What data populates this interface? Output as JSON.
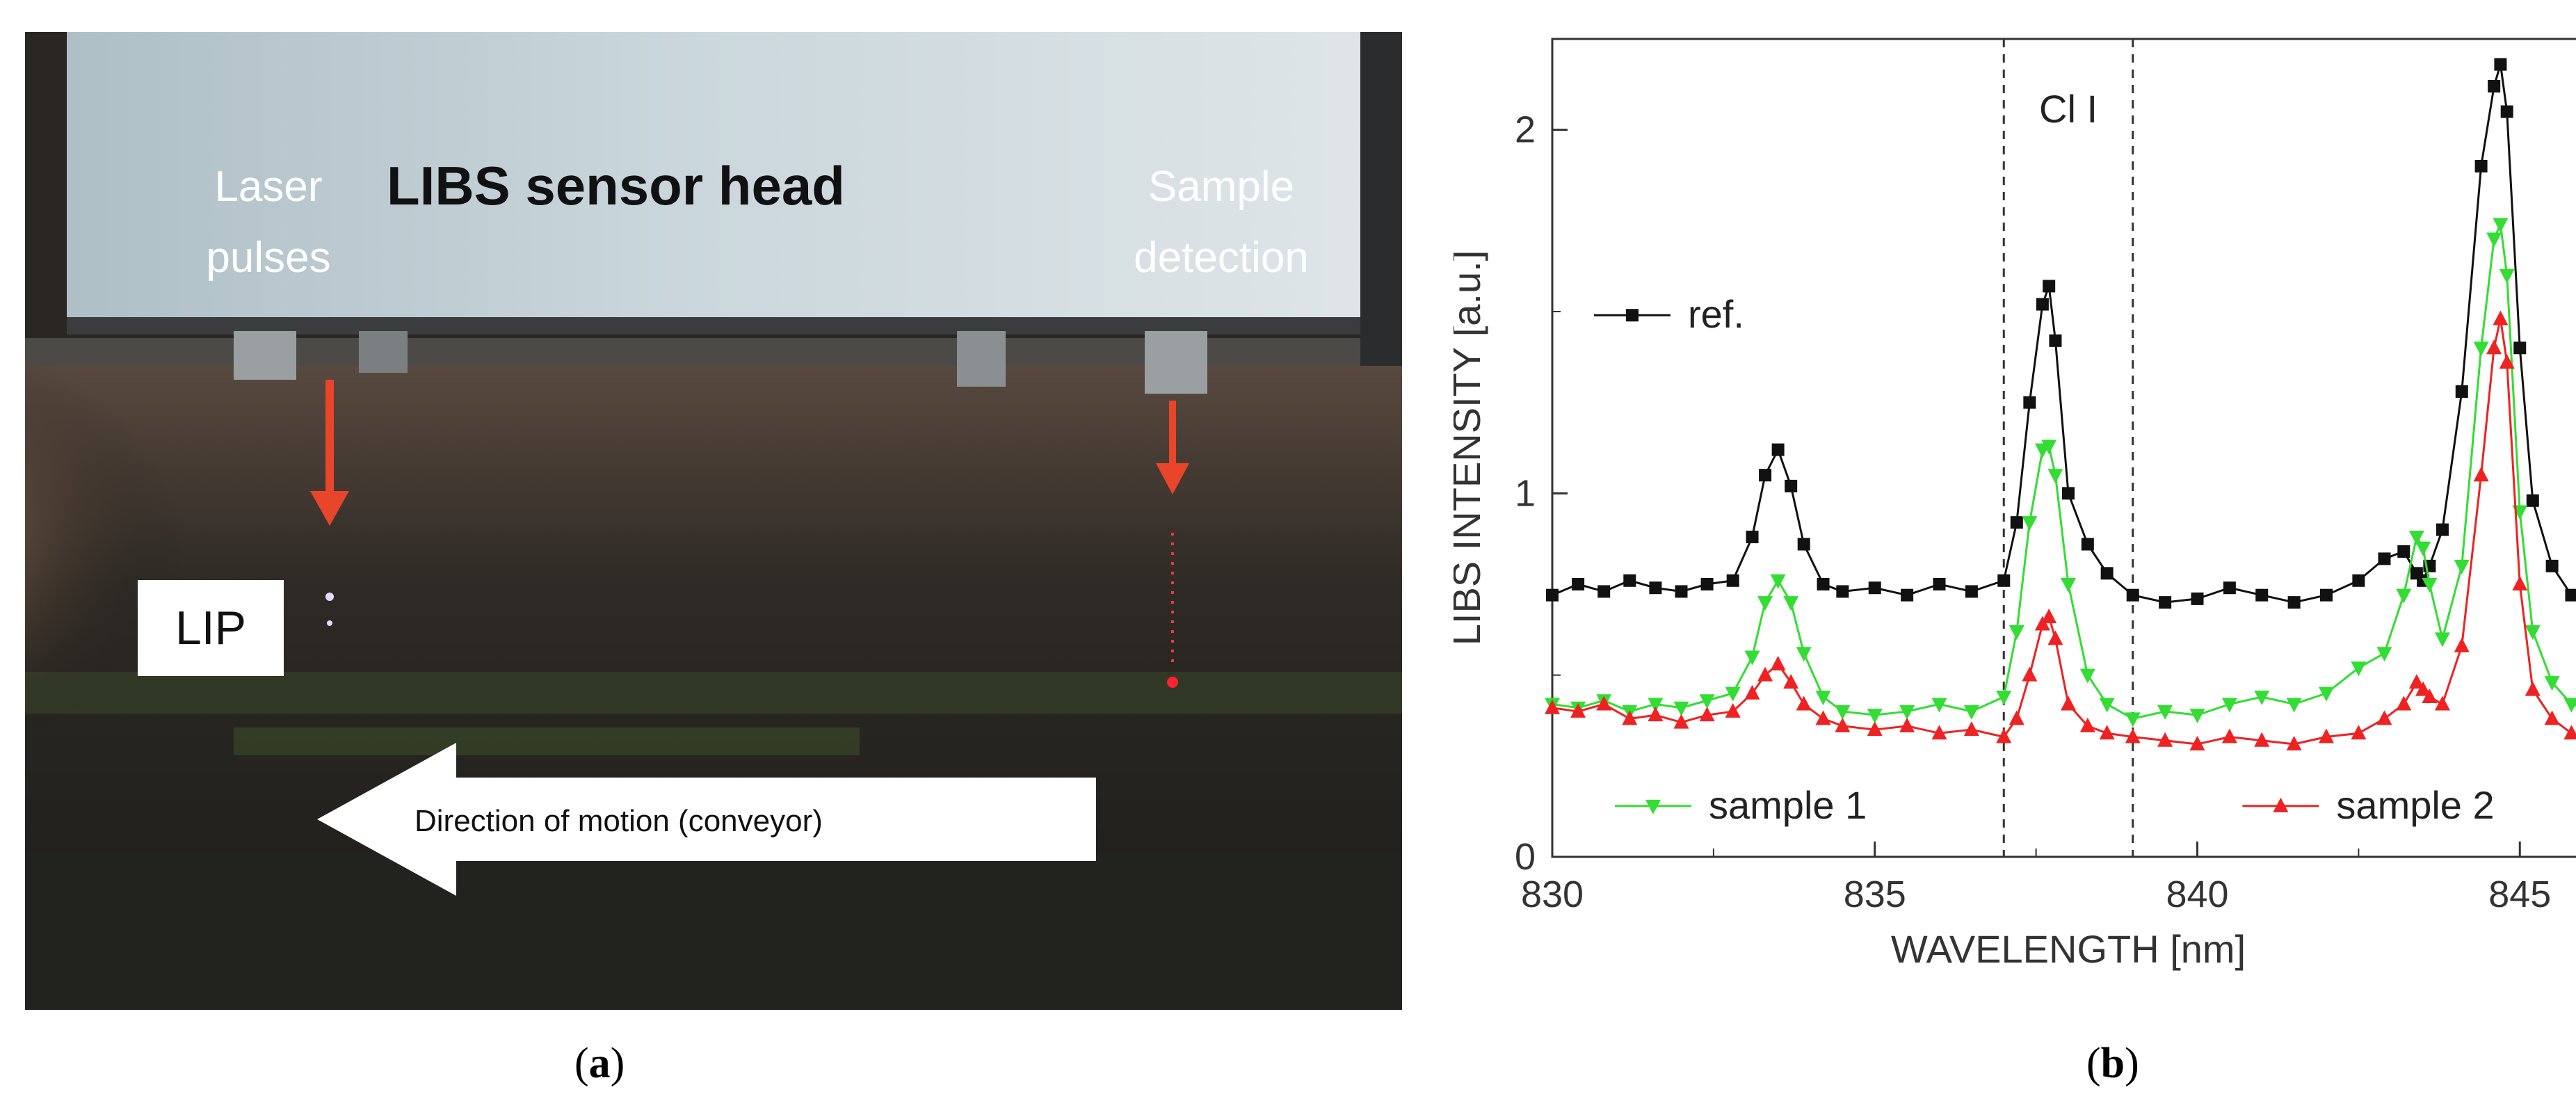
{
  "panel_a": {
    "sensor_head_label": "LIBS sensor head",
    "laser_label_line1": "Laser",
    "laser_label_line2": "pulses",
    "detection_label_line1": "Sample",
    "detection_label_line2": "detection",
    "lip_label": "LIP",
    "motion_label": "Direction of motion (conveyor)",
    "arrow_color": "#e8452a"
  },
  "captions": {
    "a_open": "(",
    "a_letter": "a",
    "a_close": ")",
    "b_open": "(",
    "b_letter": "b",
    "b_close": ")"
  },
  "chart_data": {
    "type": "line",
    "title": "",
    "xlabel": "WAVELENGTH  [nm]",
    "ylabel": "LIBS INTENSITY  [a.u.]",
    "xlim": [
      830,
      846
    ],
    "ylim": [
      0,
      2.25
    ],
    "xticks": [
      830,
      835,
      840,
      845
    ],
    "yticks": [
      0,
      1,
      2
    ],
    "grid": false,
    "annotation": "Cl I",
    "vlines": [
      837,
      839
    ],
    "legend": [
      {
        "series": "ref.",
        "placement": "left"
      },
      {
        "series": "sample 1",
        "placement": "bottom-left"
      },
      {
        "series": "sample 2",
        "placement": "bottom-right"
      }
    ],
    "x": [
      830.0,
      830.4,
      830.8,
      831.2,
      831.6,
      832.0,
      832.4,
      832.8,
      833.1,
      833.3,
      833.5,
      833.7,
      833.9,
      834.2,
      834.5,
      835.0,
      835.5,
      836.0,
      836.5,
      837.0,
      837.2,
      837.4,
      837.6,
      837.7,
      837.8,
      838.0,
      838.3,
      838.6,
      839.0,
      839.5,
      840.0,
      840.5,
      841.0,
      841.5,
      842.0,
      842.5,
      842.9,
      843.2,
      843.4,
      843.5,
      843.6,
      843.8,
      844.1,
      844.4,
      844.6,
      844.7,
      844.8,
      845.0,
      845.2,
      845.5,
      845.8,
      846.0
    ],
    "series": [
      {
        "name": "ref.",
        "color": "#111111",
        "marker": "square",
        "values": [
          0.72,
          0.75,
          0.73,
          0.76,
          0.74,
          0.73,
          0.75,
          0.76,
          0.88,
          1.05,
          1.12,
          1.02,
          0.86,
          0.75,
          0.73,
          0.74,
          0.72,
          0.75,
          0.73,
          0.76,
          0.92,
          1.25,
          1.52,
          1.57,
          1.42,
          1.0,
          0.86,
          0.78,
          0.72,
          0.7,
          0.71,
          0.74,
          0.72,
          0.7,
          0.72,
          0.76,
          0.82,
          0.84,
          0.78,
          0.76,
          0.8,
          0.9,
          1.28,
          1.9,
          2.12,
          2.18,
          2.05,
          1.4,
          0.98,
          0.8,
          0.72,
          0.7
        ]
      },
      {
        "name": "sample 1",
        "color": "#33dd33",
        "marker": "triangle-down",
        "values": [
          0.42,
          0.41,
          0.43,
          0.4,
          0.42,
          0.41,
          0.43,
          0.45,
          0.55,
          0.7,
          0.76,
          0.7,
          0.56,
          0.44,
          0.4,
          0.39,
          0.4,
          0.42,
          0.4,
          0.44,
          0.62,
          0.92,
          1.12,
          1.13,
          1.05,
          0.75,
          0.5,
          0.42,
          0.38,
          0.4,
          0.39,
          0.42,
          0.44,
          0.42,
          0.45,
          0.52,
          0.56,
          0.72,
          0.88,
          0.85,
          0.75,
          0.6,
          0.8,
          1.4,
          1.7,
          1.74,
          1.6,
          0.95,
          0.62,
          0.48,
          0.42,
          0.41
        ]
      },
      {
        "name": "sample 2",
        "color": "#ee2222",
        "marker": "triangle-up",
        "values": [
          0.41,
          0.4,
          0.42,
          0.38,
          0.39,
          0.37,
          0.39,
          0.4,
          0.45,
          0.5,
          0.53,
          0.48,
          0.42,
          0.38,
          0.36,
          0.35,
          0.36,
          0.34,
          0.35,
          0.33,
          0.38,
          0.5,
          0.64,
          0.66,
          0.6,
          0.42,
          0.36,
          0.34,
          0.33,
          0.32,
          0.31,
          0.33,
          0.32,
          0.31,
          0.33,
          0.34,
          0.38,
          0.42,
          0.48,
          0.46,
          0.44,
          0.42,
          0.58,
          1.05,
          1.4,
          1.48,
          1.36,
          0.75,
          0.46,
          0.38,
          0.34,
          0.32
        ]
      }
    ]
  }
}
